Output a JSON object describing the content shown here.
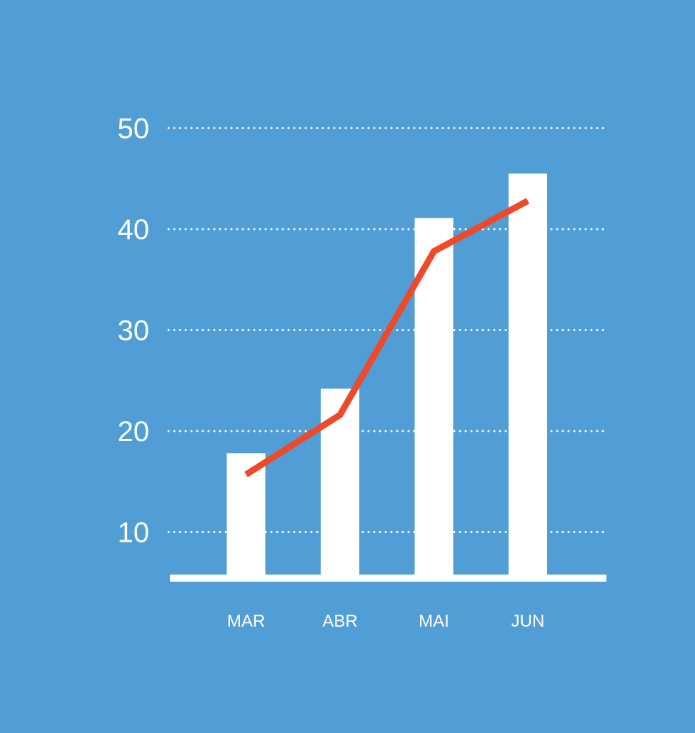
{
  "colors": {
    "background": "#519DD5",
    "bar": "#FFFFFF",
    "line": "#EE4A2A",
    "grid": "#FFFFFF",
    "text": "#FFFFFF"
  },
  "chart_data": {
    "type": "bar",
    "title": "",
    "xlabel": "",
    "ylabel": "",
    "categories": [
      "MAR",
      "ABR",
      "MAI",
      "JUN"
    ],
    "yticks": [
      10,
      20,
      30,
      40,
      50
    ],
    "ylim": [
      5.5,
      50
    ],
    "grid": true,
    "grid_style": "dotted",
    "legend": "none",
    "series": [
      {
        "type": "bar",
        "values": [
          17.8,
          24.2,
          41.1,
          45.5
        ]
      },
      {
        "type": "line",
        "values": [
          15.7,
          21.6,
          37.8,
          42.8
        ]
      }
    ]
  }
}
